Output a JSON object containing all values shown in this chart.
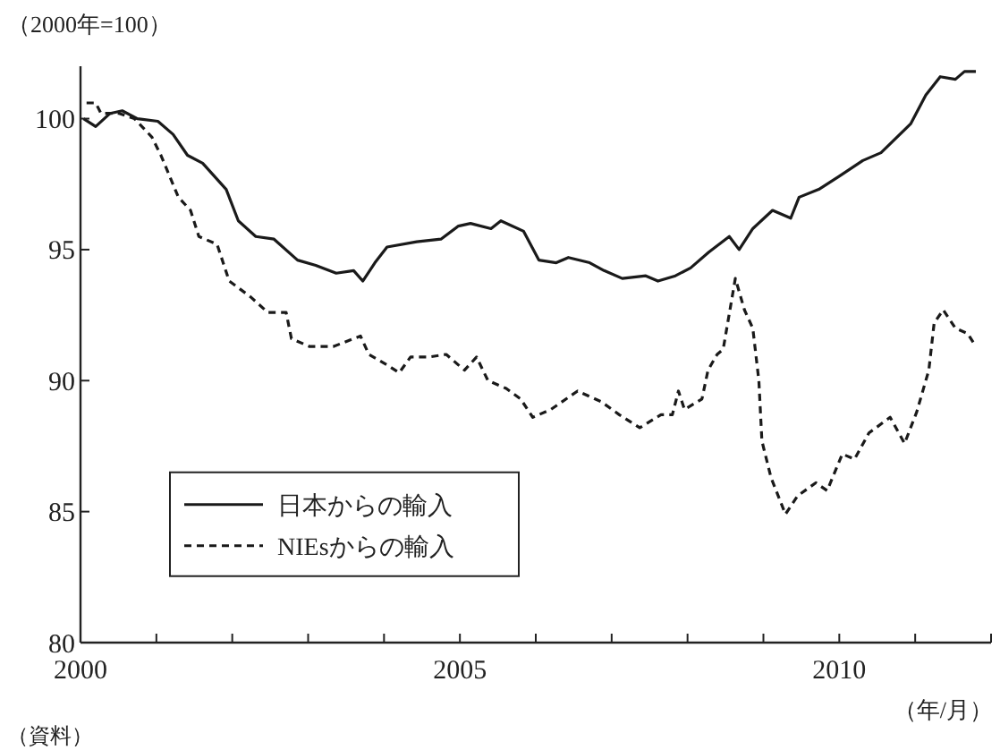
{
  "chart_data": {
    "type": "line",
    "ylabel": "（2000年=100）",
    "xlabel": "（年/月）",
    "annotations": [
      "（資料）"
    ],
    "xlim": [
      2000,
      2012
    ],
    "xticks": [
      2000,
      {
        "value": 2001,
        "label": null
      },
      {
        "value": 2002,
        "label": null
      },
      {
        "value": 2003,
        "label": null
      },
      {
        "value": 2004,
        "label": null
      },
      2005,
      {
        "value": 2006,
        "label": null
      },
      {
        "value": 2007,
        "label": null
      },
      {
        "value": 2008,
        "label": null
      },
      {
        "value": 2009,
        "label": null
      },
      2010,
      {
        "value": 2011,
        "label": null
      },
      {
        "value": 2012,
        "label": null
      }
    ],
    "ylim": [
      80,
      102
    ],
    "yticks": [
      80,
      85,
      90,
      95,
      100
    ],
    "grid": false,
    "legend": "bottom left",
    "series": [
      {
        "name": "日本からの輸入",
        "color": "#1a1a1a",
        "line_style": "solid",
        "x": [
          2000.04,
          2000.2,
          2000.39,
          2000.55,
          2000.75,
          2001.02,
          2001.22,
          2001.41,
          2001.61,
          2001.92,
          2002.08,
          2002.31,
          2002.55,
          2002.86,
          2003.1,
          2003.37,
          2003.6,
          2003.72,
          2003.88,
          2004.04,
          2004.43,
          2004.75,
          2004.98,
          2005.14,
          2005.41,
          2005.54,
          2005.84,
          2006.04,
          2006.27,
          2006.43,
          2006.71,
          2006.9,
          2007.14,
          2007.45,
          2007.61,
          2007.84,
          2008.04,
          2008.28,
          2008.55,
          2008.68,
          2008.86,
          2009.12,
          2009.36,
          2009.47,
          2009.73,
          2010.0,
          2010.31,
          2010.55,
          2010.94,
          2011.14,
          2011.33,
          2011.53,
          2011.65,
          2011.8
        ],
        "values": [
          100.0,
          99.7,
          100.2,
          100.3,
          100.0,
          99.9,
          99.4,
          98.6,
          98.3,
          97.3,
          96.1,
          95.5,
          95.4,
          94.6,
          94.4,
          94.1,
          94.2,
          93.8,
          94.5,
          95.1,
          95.3,
          95.4,
          95.9,
          96.0,
          95.8,
          96.1,
          95.7,
          94.6,
          94.5,
          94.7,
          94.5,
          94.2,
          93.9,
          94.0,
          93.8,
          94.0,
          94.3,
          94.9,
          95.5,
          95.0,
          95.8,
          96.5,
          96.2,
          97.0,
          97.3,
          97.8,
          98.4,
          98.7,
          99.8,
          100.9,
          101.6,
          101.5,
          101.8,
          101.8
        ]
      },
      {
        "name": "NIEsからの輸入",
        "color": "#1a1a1a",
        "line_style": "dashed",
        "x": [
          2000.08,
          2000.2,
          2000.27,
          2000.51,
          2000.71,
          2000.94,
          2001.06,
          2001.29,
          2001.45,
          2001.56,
          2001.8,
          2001.96,
          2002.24,
          2002.47,
          2002.71,
          2002.78,
          2003.02,
          2003.33,
          2003.69,
          2003.8,
          2004.04,
          2004.2,
          2004.35,
          2004.59,
          2004.82,
          2005.06,
          2005.22,
          2005.37,
          2005.61,
          2005.8,
          2005.96,
          2006.2,
          2006.55,
          2006.86,
          2007.1,
          2007.37,
          2007.65,
          2007.8,
          2007.88,
          2007.96,
          2008.19,
          2008.27,
          2008.39,
          2008.47,
          2008.63,
          2008.75,
          2008.86,
          2008.94,
          2008.98,
          2009.1,
          2009.29,
          2009.45,
          2009.69,
          2009.84,
          2010.04,
          2010.2,
          2010.39,
          2010.67,
          2010.86,
          2011.02,
          2011.18,
          2011.25,
          2011.37,
          2011.53,
          2011.69,
          2011.8
        ],
        "values": [
          100.6,
          100.6,
          100.2,
          100.2,
          100.0,
          99.3,
          98.6,
          97.0,
          96.5,
          95.5,
          95.2,
          93.8,
          93.2,
          92.6,
          92.6,
          91.6,
          91.3,
          91.3,
          91.7,
          91.0,
          90.6,
          90.3,
          90.9,
          90.9,
          91.0,
          90.4,
          90.9,
          90.0,
          89.7,
          89.3,
          88.6,
          88.9,
          89.6,
          89.2,
          88.7,
          88.2,
          88.7,
          88.7,
          89.6,
          88.9,
          89.3,
          90.4,
          91.0,
          91.2,
          93.9,
          92.7,
          92.0,
          90.0,
          87.7,
          86.3,
          84.9,
          85.6,
          86.1,
          85.8,
          87.2,
          87.0,
          88.0,
          88.6,
          87.6,
          88.8,
          90.4,
          92.2,
          92.7,
          92.0,
          91.8,
          91.3
        ]
      }
    ]
  }
}
